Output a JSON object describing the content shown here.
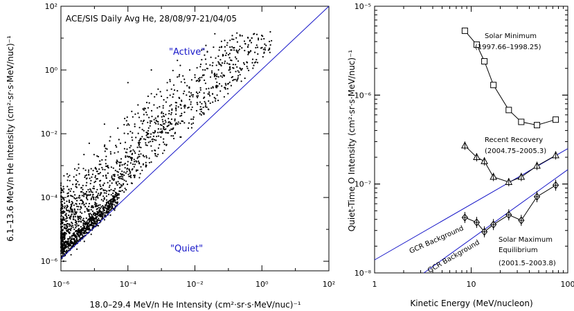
{
  "chart_data": [
    {
      "type": "scatter",
      "title": "ACE/SIS Daily Avg He, 28/08/97-21/04/05",
      "xlabel": "18.0–29.4 MeV/n He Intensity (cm²·sr·s·MeV/nuc)⁻¹",
      "ylabel": "6.1–13.6 MeV/n He Intensity (cm²·sr·s·MeV/nuc)⁻¹",
      "xscale": "log",
      "yscale": "log",
      "xlim": [
        1e-06,
        100
      ],
      "ylim": [
        5e-07,
        100
      ],
      "x_ticks": [
        "10⁻⁶",
        "10⁻⁴",
        "10⁻²",
        "10⁰",
        "10²"
      ],
      "y_ticks": [
        "10⁻⁶",
        "10⁻⁴",
        "10⁻²",
        "10⁰",
        "10²"
      ],
      "annotations": [
        "\"Active\"",
        "\"Quiet\""
      ],
      "reference_line": {
        "x": [
          1e-06,
          100
        ],
        "y": [
          1.2e-06,
          100
        ]
      },
      "points": [
        [
          1.2e-06,
          1e-06
        ],
        [
          1.5e-06,
          2.2e-06
        ],
        [
          2e-06,
          1.6e-06
        ],
        [
          2.5e-06,
          3.5e-06
        ],
        [
          3e-06,
          2.4e-06
        ],
        [
          4e-06,
          5e-06
        ],
        [
          5e-06,
          4.2e-06
        ],
        [
          6e-06,
          1e-05
        ],
        [
          8e-06,
          7e-06
        ],
        [
          1e-05,
          1.6e-05
        ],
        [
          1.3e-05,
          1.3e-05
        ],
        [
          1.6e-05,
          3e-05
        ],
        [
          2e-05,
          2e-05
        ],
        [
          2.5e-05,
          3.5e-05
        ],
        [
          3e-05,
          2.8e-05
        ],
        [
          4e-05,
          4e-05
        ],
        [
          1.3e-06,
          6e-06
        ],
        [
          1.6e-06,
          1.5e-05
        ],
        [
          2e-06,
          4e-05
        ],
        [
          2.5e-06,
          1e-05
        ],
        [
          3e-06,
          8e-05
        ],
        [
          3.5e-06,
          2.5e-05
        ],
        [
          4e-06,
          0.0002
        ],
        [
          5e-06,
          6e-05
        ],
        [
          6e-06,
          0.0004
        ],
        [
          7e-06,
          0.00015
        ],
        [
          8e-06,
          0.0008
        ],
        [
          1e-05,
          0.0003
        ],
        [
          1.2e-05,
          0.002
        ],
        [
          1.5e-05,
          0.0006
        ],
        [
          2e-05,
          0.004
        ],
        [
          2.5e-05,
          0.001
        ],
        [
          3e-05,
          0.008
        ],
        [
          4e-05,
          0.0025
        ],
        [
          5e-05,
          0.015
        ],
        [
          6e-05,
          0.005
        ],
        [
          8e-05,
          0.03
        ],
        [
          0.0001,
          0.01
        ],
        [
          0.00013,
          0.05
        ],
        [
          0.00016,
          0.02
        ],
        [
          0.0002,
          0.08
        ],
        [
          0.0003,
          0.04
        ],
        [
          0.0004,
          0.15
        ],
        [
          0.0006,
          0.08
        ],
        [
          0.0008,
          0.25
        ],
        [
          0.001,
          0.15
        ],
        [
          0.0015,
          0.4
        ],
        [
          0.002,
          0.25
        ],
        [
          0.003,
          0.6
        ],
        [
          0.005,
          0.4
        ],
        [
          0.007,
          1.0
        ],
        [
          0.01,
          0.7
        ],
        [
          0.015,
          1.5
        ],
        [
          0.02,
          1.0
        ],
        [
          0.03,
          2.5
        ],
        [
          0.05,
          1.8
        ],
        [
          0.08,
          4.0
        ],
        [
          0.1,
          3.0
        ],
        [
          0.15,
          5.0
        ],
        [
          0.2,
          4.0
        ],
        [
          0.3,
          8.0
        ],
        [
          0.5,
          10.0
        ],
        [
          0.7,
          6.0
        ],
        [
          0.0001,
          0.4
        ],
        [
          2e-05,
          0.02
        ],
        [
          7e-06,
          0.005
        ],
        [
          0.0005,
          1.0
        ],
        [
          0.003,
          2.0
        ]
      ],
      "points_note": "point cloud approximated"
    },
    {
      "type": "line",
      "xlabel": "Kinetic Energy (MeV/nucleon)",
      "ylabel": "Quiet-Time O Intensity (cm²·sr·s·MeV/nuc)⁻¹",
      "xscale": "log",
      "yscale": "log",
      "xlim": [
        1,
        100
      ],
      "ylim": [
        1e-08,
        1e-05
      ],
      "x_ticks": [
        "1",
        "10",
        "100"
      ],
      "y_ticks": [
        "10⁻⁸",
        "10⁻⁷",
        "10⁻⁶",
        "10⁻⁵"
      ],
      "series": [
        {
          "name": "Solar Minimum (1997.66–1998.25)",
          "label_lines": [
            "Solar Minimum",
            "(1997.66–1998.25)"
          ],
          "marker": "square",
          "x": [
            8.6,
            11.4,
            13.7,
            17.0,
            24.5,
            33.0,
            48.0,
            75.0
          ],
          "y": [
            5.3e-06,
            3.7e-06,
            2.4e-06,
            1.3e-06,
            6.8e-07,
            5e-07,
            4.6e-07,
            5.3e-07
          ]
        },
        {
          "name": "Recent Recovery (2004.75–2005.3)",
          "label_lines": [
            "Recent Recovery",
            "(2004.75–2005.3)"
          ],
          "marker": "triangle",
          "x": [
            8.6,
            11.4,
            13.7,
            17.0,
            24.5,
            33.0,
            48.0,
            75.0
          ],
          "y": [
            2.7e-07,
            2e-07,
            1.8e-07,
            1.2e-07,
            1.05e-07,
            1.2e-07,
            1.6e-07,
            2.1e-07
          ]
        },
        {
          "name": "Solar Maximum Equilibrium (2001.5–2003.8)",
          "label_lines": [
            "Solar Maximum",
            "Equilibrium",
            "(2001.5–2003.8)"
          ],
          "marker": "diamond",
          "x": [
            8.6,
            11.4,
            13.7,
            17.0,
            24.5,
            33.0,
            48.0,
            75.0
          ],
          "y": [
            4.2e-08,
            3.7e-08,
            2.9e-08,
            3.5e-08,
            4.5e-08,
            3.9e-08,
            7.2e-08,
            9.7e-08
          ]
        }
      ],
      "reference_lines": [
        {
          "name": "GCR Background",
          "x": [
            1,
            100
          ],
          "y": [
            1.4e-08,
            2.5e-07
          ]
        },
        {
          "name": "GCR Background",
          "x": [
            1,
            100
          ],
          "y": [
            4e-09,
            1.45e-07
          ]
        }
      ]
    }
  ]
}
